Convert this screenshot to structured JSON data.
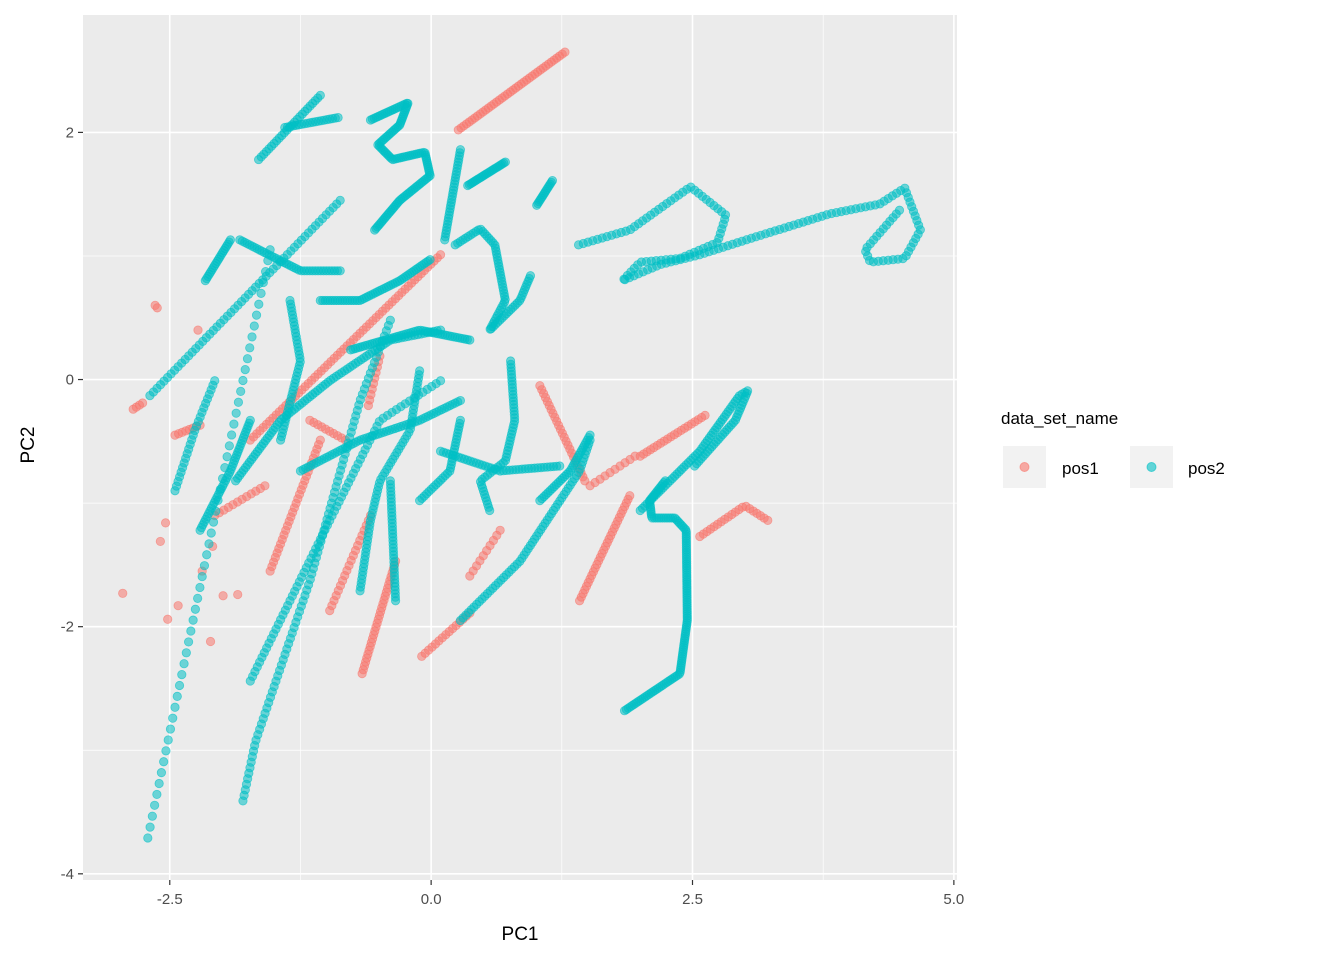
{
  "chart_data": {
    "type": "scatter",
    "title": "",
    "xlabel": "PC1",
    "ylabel": "PC2",
    "xlim": [
      -3.33,
      5.03
    ],
    "ylim": [
      -4.05,
      2.95
    ],
    "x_ticks": [
      -2.5,
      0.0,
      2.5,
      5.0
    ],
    "x_tick_labels": [
      "-2.5",
      "0.0",
      "2.5",
      "5.0"
    ],
    "y_ticks": [
      -4,
      -2,
      0,
      2
    ],
    "y_tick_labels": [
      "-4",
      "-2",
      "0",
      "2"
    ],
    "x_minor": [
      -1.25,
      1.25,
      3.75
    ],
    "y_minor": [
      -3,
      -1,
      1
    ],
    "grid": true,
    "legend": {
      "title": "data_set_name",
      "placement": "right",
      "entries": [
        "pos1",
        "pos2"
      ]
    },
    "colors": {
      "pos1": "#F8766D",
      "pos2": "#00BFC4",
      "panel": "#EBEBEB",
      "key": "#F2F2F2"
    },
    "note": "Each series is a set of trajectories; points are sampled evenly along each path (n points).",
    "series": [
      {
        "name": "pos1",
        "paths": [
          {
            "n": 40,
            "pts": [
              [
                0.26,
                2.02
              ],
              [
                1.28,
                2.65
              ]
            ]
          },
          {
            "n": 4,
            "pts": [
              [
                -2.85,
                -0.24
              ],
              [
                -2.76,
                -0.19
              ]
            ]
          },
          {
            "n": 2,
            "pts": [
              [
                -2.64,
                0.6
              ],
              [
                -2.62,
                0.58
              ]
            ]
          },
          {
            "n": 8,
            "pts": [
              [
                -2.45,
                -0.45
              ],
              [
                -2.21,
                -0.37
              ]
            ]
          },
          {
            "n": 12,
            "pts": [
              [
                -2.07,
                -1.1
              ],
              [
                -1.59,
                -0.86
              ]
            ]
          },
          {
            "n": 30,
            "pts": [
              [
                -1.54,
                -1.55
              ],
              [
                -1.06,
                -0.49
              ]
            ]
          },
          {
            "n": 20,
            "pts": [
              [
                -0.97,
                -1.87
              ],
              [
                -0.58,
                -1.1
              ]
            ]
          },
          {
            "n": 30,
            "pts": [
              [
                -0.66,
                -2.38
              ],
              [
                -0.34,
                -1.47
              ]
            ]
          },
          {
            "n": 15,
            "pts": [
              [
                -0.09,
                -2.24
              ],
              [
                0.37,
                -1.89
              ]
            ]
          },
          {
            "n": 60,
            "pts": [
              [
                -1.73,
                -0.49
              ],
              [
                0.09,
                1.01
              ]
            ]
          },
          {
            "n": 10,
            "pts": [
              [
                -0.6,
                -0.21
              ],
              [
                -0.49,
                0.19
              ]
            ]
          },
          {
            "n": 25,
            "pts": [
              [
                1.04,
                -0.05
              ],
              [
                1.47,
                -0.82
              ]
            ]
          },
          {
            "n": 30,
            "pts": [
              [
                1.42,
                -1.79
              ],
              [
                1.9,
                -0.94
              ]
            ]
          },
          {
            "n": 10,
            "pts": [
              [
                1.52,
                -0.86
              ],
              [
                1.95,
                -0.62
              ]
            ]
          },
          {
            "n": 20,
            "pts": [
              [
                2.57,
                -1.27
              ],
              [
                3.0,
                -1.02
              ],
              [
                3.22,
                -1.14
              ]
            ]
          },
          {
            "n": 20,
            "pts": [
              [
                2.0,
                -0.62
              ],
              [
                2.62,
                -0.29
              ]
            ]
          },
          {
            "n": 10,
            "pts": [
              [
                0.37,
                -1.59
              ],
              [
                0.66,
                -1.22
              ]
            ]
          },
          {
            "n": 10,
            "pts": [
              [
                -1.16,
                -0.33
              ],
              [
                -0.82,
                -0.49
              ]
            ]
          },
          {
            "n": 1,
            "pts": [
              [
                -2.95,
                -1.73
              ]
            ]
          },
          {
            "n": 1,
            "pts": [
              [
                -2.52,
                -1.94
              ]
            ]
          },
          {
            "n": 1,
            "pts": [
              [
                -2.42,
                -1.83
              ]
            ]
          },
          {
            "n": 1,
            "pts": [
              [
                -2.11,
                -2.12
              ]
            ]
          },
          {
            "n": 1,
            "pts": [
              [
                -1.99,
                -1.75
              ]
            ]
          },
          {
            "n": 1,
            "pts": [
              [
                -1.85,
                -1.74
              ]
            ]
          },
          {
            "n": 1,
            "pts": [
              [
                -2.09,
                -1.35
              ]
            ]
          },
          {
            "n": 1,
            "pts": [
              [
                -2.59,
                -1.31
              ]
            ]
          },
          {
            "n": 1,
            "pts": [
              [
                -2.54,
                -1.16
              ]
            ]
          },
          {
            "n": 1,
            "pts": [
              [
                -2.19,
                -1.55
              ]
            ]
          },
          {
            "n": 1,
            "pts": [
              [
                -2.23,
                0.4
              ]
            ]
          }
        ]
      },
      {
        "name": "pos2",
        "paths": [
          {
            "n": 55,
            "pts": [
              [
                -2.71,
                -3.71
              ],
              [
                -1.54,
                1.05
              ]
            ]
          },
          {
            "n": 55,
            "pts": [
              [
                -2.69,
                -0.13
              ],
              [
                -0.87,
                1.45
              ]
            ]
          },
          {
            "n": 90,
            "pts": [
              [
                -1.8,
                -3.41
              ],
              [
                -1.68,
                -2.93
              ],
              [
                -1.16,
                -1.63
              ],
              [
                -0.68,
                -0.17
              ],
              [
                -0.39,
                0.48
              ]
            ]
          },
          {
            "n": 70,
            "pts": [
              [
                -1.73,
                -2.44
              ],
              [
                -0.97,
                -1.14
              ],
              [
                -0.49,
                -0.33
              ],
              [
                0.09,
                -0.01
              ]
            ]
          },
          {
            "n": 25,
            "pts": [
              [
                -1.65,
                1.78
              ],
              [
                -1.06,
                2.3
              ]
            ]
          },
          {
            "n": 20,
            "pts": [
              [
                -1.4,
                2.04
              ],
              [
                -0.89,
                2.12
              ]
            ]
          },
          {
            "n": 120,
            "pts": [
              [
                -0.58,
                2.1
              ],
              [
                -0.22,
                2.24
              ],
              [
                -0.3,
                2.06
              ],
              [
                -0.51,
                1.9
              ],
              [
                -0.37,
                1.78
              ],
              [
                -0.06,
                1.84
              ],
              [
                -0.01,
                1.65
              ],
              [
                -0.3,
                1.45
              ],
              [
                -0.54,
                1.21
              ]
            ]
          },
          {
            "n": 30,
            "pts": [
              [
                0.28,
                1.86
              ],
              [
                0.13,
                1.13
              ]
            ]
          },
          {
            "n": 25,
            "pts": [
              [
                0.35,
                1.57
              ],
              [
                0.71,
                1.76
              ]
            ]
          },
          {
            "n": 15,
            "pts": [
              [
                1.01,
                1.41
              ],
              [
                1.16,
                1.61
              ]
            ]
          },
          {
            "n": 160,
            "pts": [
              [
                1.41,
                1.09
              ],
              [
                1.9,
                1.21
              ],
              [
                2.48,
                1.56
              ],
              [
                2.82,
                1.33
              ],
              [
                2.74,
                1.11
              ],
              [
                2.38,
                0.98
              ],
              [
                2.0,
                0.95
              ],
              [
                1.83,
                0.8
              ],
              [
                2.19,
                0.93
              ],
              [
                2.57,
                1.01
              ],
              [
                3.05,
                1.14
              ],
              [
                3.81,
                1.34
              ],
              [
                4.29,
                1.42
              ],
              [
                4.53,
                1.55
              ],
              [
                4.68,
                1.21
              ],
              [
                4.53,
                0.98
              ],
              [
                4.2,
                0.95
              ],
              [
                4.15,
                1.05
              ],
              [
                4.48,
                1.37
              ]
            ]
          },
          {
            "n": 130,
            "pts": [
              [
                1.85,
                -2.68
              ],
              [
                2.38,
                -2.38
              ],
              [
                2.45,
                -1.95
              ],
              [
                2.44,
                -1.22
              ],
              [
                2.33,
                -1.12
              ],
              [
                2.11,
                -1.12
              ],
              [
                2.09,
                -0.98
              ],
              [
                2.24,
                -0.82
              ]
            ]
          },
          {
            "n": 80,
            "pts": [
              [
                2.0,
                -1.06
              ],
              [
                2.57,
                -0.58
              ],
              [
                2.95,
                -0.13
              ],
              [
                3.03,
                -0.09
              ],
              [
                2.91,
                -0.33
              ],
              [
                2.52,
                -0.7
              ]
            ]
          },
          {
            "n": 60,
            "pts": [
              [
                0.28,
                -1.95
              ],
              [
                0.85,
                -1.47
              ],
              [
                1.42,
                -0.74
              ],
              [
                1.52,
                -0.49
              ]
            ]
          },
          {
            "n": 60,
            "pts": [
              [
                -1.25,
                -0.74
              ],
              [
                -0.68,
                -0.49
              ],
              [
                -0.11,
                -0.33
              ],
              [
                0.28,
                -0.17
              ]
            ]
          },
          {
            "n": 80,
            "pts": [
              [
                -1.87,
                -0.82
              ],
              [
                -1.44,
                -0.33
              ],
              [
                -0.97,
                -0.01
              ],
              [
                -0.39,
                0.32
              ],
              [
                0.09,
                0.4
              ]
            ]
          },
          {
            "n": 40,
            "pts": [
              [
                -1.83,
                1.13
              ],
              [
                -1.25,
                0.88
              ],
              [
                -0.87,
                0.88
              ]
            ]
          },
          {
            "n": 50,
            "pts": [
              [
                -1.06,
                0.64
              ],
              [
                -0.68,
                0.64
              ],
              [
                -0.3,
                0.8
              ],
              [
                -0.01,
                0.97
              ]
            ]
          },
          {
            "n": 50,
            "pts": [
              [
                -0.77,
                0.24
              ],
              [
                -0.11,
                0.4
              ],
              [
                0.37,
                0.32
              ]
            ]
          },
          {
            "n": 70,
            "pts": [
              [
                0.23,
                1.09
              ],
              [
                0.47,
                1.22
              ],
              [
                0.61,
                1.09
              ],
              [
                0.71,
                0.64
              ],
              [
                0.56,
                0.4
              ],
              [
                0.85,
                0.64
              ],
              [
                0.95,
                0.84
              ]
            ]
          },
          {
            "n": 50,
            "pts": [
              [
                0.76,
                0.15
              ],
              [
                0.8,
                -0.33
              ],
              [
                0.71,
                -0.66
              ],
              [
                0.47,
                -0.82
              ],
              [
                0.56,
                -1.06
              ]
            ]
          },
          {
            "n": 60,
            "pts": [
              [
                -0.11,
                0.07
              ],
              [
                -0.2,
                -0.41
              ],
              [
                -0.49,
                -0.82
              ],
              [
                -0.58,
                -1.14
              ],
              [
                -0.68,
                -1.71
              ]
            ]
          },
          {
            "n": 35,
            "pts": [
              [
                -0.39,
                -0.82
              ],
              [
                -0.34,
                -1.79
              ]
            ]
          },
          {
            "n": 40,
            "pts": [
              [
                -2.21,
                -1.22
              ],
              [
                -1.92,
                -0.74
              ],
              [
                -1.73,
                -0.33
              ]
            ]
          },
          {
            "n": 20,
            "pts": [
              [
                -2.16,
                0.8
              ],
              [
                -1.92,
                1.13
              ]
            ]
          },
          {
            "n": 30,
            "pts": [
              [
                0.28,
                -0.33
              ],
              [
                0.18,
                -0.74
              ],
              [
                -0.11,
                -0.98
              ]
            ]
          },
          {
            "n": 30,
            "pts": [
              [
                1.04,
                -0.98
              ],
              [
                1.33,
                -0.74
              ],
              [
                1.52,
                -0.45
              ]
            ]
          },
          {
            "n": 40,
            "pts": [
              [
                0.09,
                -0.58
              ],
              [
                0.66,
                -0.74
              ],
              [
                1.23,
                -0.7
              ]
            ]
          },
          {
            "n": 25,
            "pts": [
              [
                -2.45,
                -0.9
              ],
              [
                -2.26,
                -0.41
              ],
              [
                -2.07,
                -0.01
              ]
            ]
          },
          {
            "n": 40,
            "pts": [
              [
                -1.35,
                0.64
              ],
              [
                -1.25,
                0.15
              ],
              [
                -1.44,
                -0.49
              ]
            ]
          }
        ]
      }
    ]
  }
}
